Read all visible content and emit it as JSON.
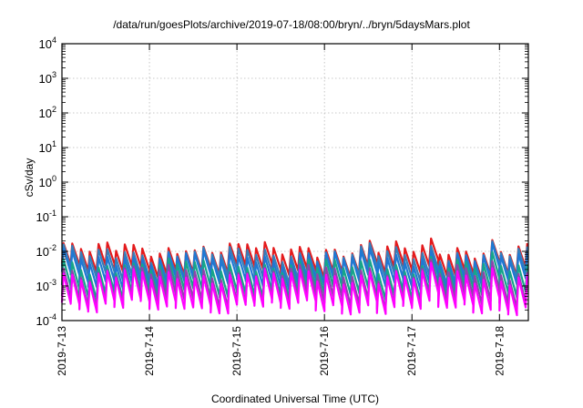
{
  "chart_data": {
    "type": "line",
    "title": "/data/run/goesPlots/archive/2019-07-18/08:00/bryn/../bryn/5daysMars.plot",
    "xlabel": "Coordinated Universal Time (UTC)",
    "ylabel": "cSv/day",
    "y_scale": "log",
    "ylim": [
      0.0001,
      10000
    ],
    "y_ticks": [
      {
        "value": 0.0001,
        "base": "10",
        "exp": "-4"
      },
      {
        "value": 0.001,
        "base": "10",
        "exp": "-3"
      },
      {
        "value": 0.01,
        "base": "10",
        "exp": "-2"
      },
      {
        "value": 0.1,
        "base": "10",
        "exp": "-1"
      },
      {
        "value": 1,
        "base": "10",
        "exp": "0"
      },
      {
        "value": 10,
        "base": "10",
        "exp": "1"
      },
      {
        "value": 100,
        "base": "10",
        "exp": "2"
      },
      {
        "value": 1000,
        "base": "10",
        "exp": "3"
      },
      {
        "value": 10000,
        "base": "10",
        "exp": "4"
      }
    ],
    "x_unit": "days",
    "xlim": [
      0,
      5.33
    ],
    "x_ticks": [
      {
        "value": 0,
        "label": "2019-7-13"
      },
      {
        "value": 1,
        "label": "2019-7-14"
      },
      {
        "value": 2,
        "label": "2019-7-15"
      },
      {
        "value": 3,
        "label": "2019-7-16"
      },
      {
        "value": 4,
        "label": "2019-7-17"
      },
      {
        "value": 5,
        "label": "2019-7-18"
      }
    ],
    "grid": true,
    "sawtooth_period_days": 0.1,
    "series": [
      {
        "color": "#e41a1c",
        "peak": 0.011,
        "trough": 0.0028
      },
      {
        "color": "#377eb8",
        "peak": 0.0082,
        "trough": 0.0019
      },
      {
        "color": "#1f78d4",
        "peak": 0.0062,
        "trough": 0.0013
      },
      {
        "color": "#17a589",
        "peak": 0.0036,
        "trough": 0.00065
      },
      {
        "color": "#8e44ad",
        "peak": 0.0024,
        "trough": 0.00038
      },
      {
        "color": "#ff00ff",
        "peak": 0.0018,
        "trough": 0.00026
      }
    ]
  }
}
